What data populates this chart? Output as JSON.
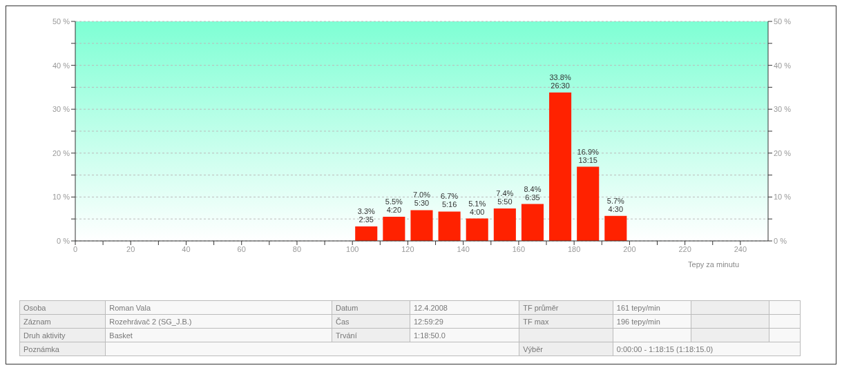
{
  "chart_data": {
    "type": "histogram",
    "xlabel": "Tepy za minutu",
    "bins": [
      100,
      110,
      120,
      130,
      140,
      150,
      160,
      170,
      180,
      190,
      200
    ],
    "values": [
      3.3,
      5.5,
      7.0,
      6.7,
      5.1,
      7.4,
      8.4,
      33.8,
      16.9,
      5.7
    ],
    "value_labels": [
      "3.3%\n2:35",
      "5.5%\n4:20",
      "7.0%\n5:30",
      "6.7%\n5:16",
      "5.1%\n4:00",
      "7.4%\n5:50",
      "8.4%\n6:35",
      "33.8%\n26:30",
      "16.9%\n13:15",
      "5.7%\n4:30"
    ],
    "color": "#ff2200",
    "xlim": [
      0,
      250
    ],
    "xticks": [
      0,
      {
        "value": 10,
        "label": null
      },
      20,
      {
        "value": 30,
        "label": null
      },
      40,
      {
        "value": 50,
        "label": null
      },
      60,
      {
        "value": 70,
        "label": null
      },
      80,
      {
        "value": 90,
        "label": null
      },
      100,
      {
        "value": 110,
        "label": null
      },
      120,
      {
        "value": 130,
        "label": null
      },
      140,
      {
        "value": 150,
        "label": null
      },
      160,
      {
        "value": 170,
        "label": null
      },
      180,
      {
        "value": 190,
        "label": null
      },
      200,
      {
        "value": 210,
        "label": null
      },
      220,
      {
        "value": 230,
        "label": null
      },
      240
    ],
    "ylim": [
      0,
      50
    ],
    "yticks": [
      {
        "value": 0,
        "label": "0 %"
      },
      {
        "value": 5,
        "label": null
      },
      {
        "value": 10,
        "label": "10 %"
      },
      {
        "value": 15,
        "label": null
      },
      {
        "value": 20,
        "label": "20 %"
      },
      {
        "value": 25,
        "label": null
      },
      {
        "value": 30,
        "label": "30 %"
      },
      {
        "value": 35,
        "label": null
      },
      {
        "value": 40,
        "label": "40 %"
      },
      {
        "value": 45,
        "label": null
      },
      {
        "value": 50,
        "label": "50 %"
      }
    ],
    "y2lim": [
      0,
      50
    ],
    "y2ticks": [
      {
        "value": 0,
        "label": "0 %"
      },
      {
        "value": 5,
        "label": null
      },
      {
        "value": 10,
        "label": "10 %"
      },
      {
        "value": 15,
        "label": null
      },
      {
        "value": 20,
        "label": "20 %"
      },
      {
        "value": 25,
        "label": null
      },
      {
        "value": 30,
        "label": "30 %"
      },
      {
        "value": 35,
        "label": null
      },
      {
        "value": 40,
        "label": "40 %"
      },
      {
        "value": 45,
        "label": null
      },
      {
        "value": 50,
        "label": "50 %"
      }
    ],
    "grid": "y",
    "annotations": [
      "Osoba",
      "Roman Vala",
      "Datum",
      "12.4.2008",
      "TF průměr",
      "161 tepy/min",
      "Záznam",
      "Rozehrávač 2 (SG_J.B.)",
      "Čas",
      "12:59:29",
      "TF max",
      "196 tepy/min",
      "Druh aktivity",
      "Basket",
      "Trvání",
      "1:18:50.0",
      "Poznámka",
      "Výběr",
      "0:00:00 - 1:18:15 (1:18:15.0)"
    ]
  }
}
